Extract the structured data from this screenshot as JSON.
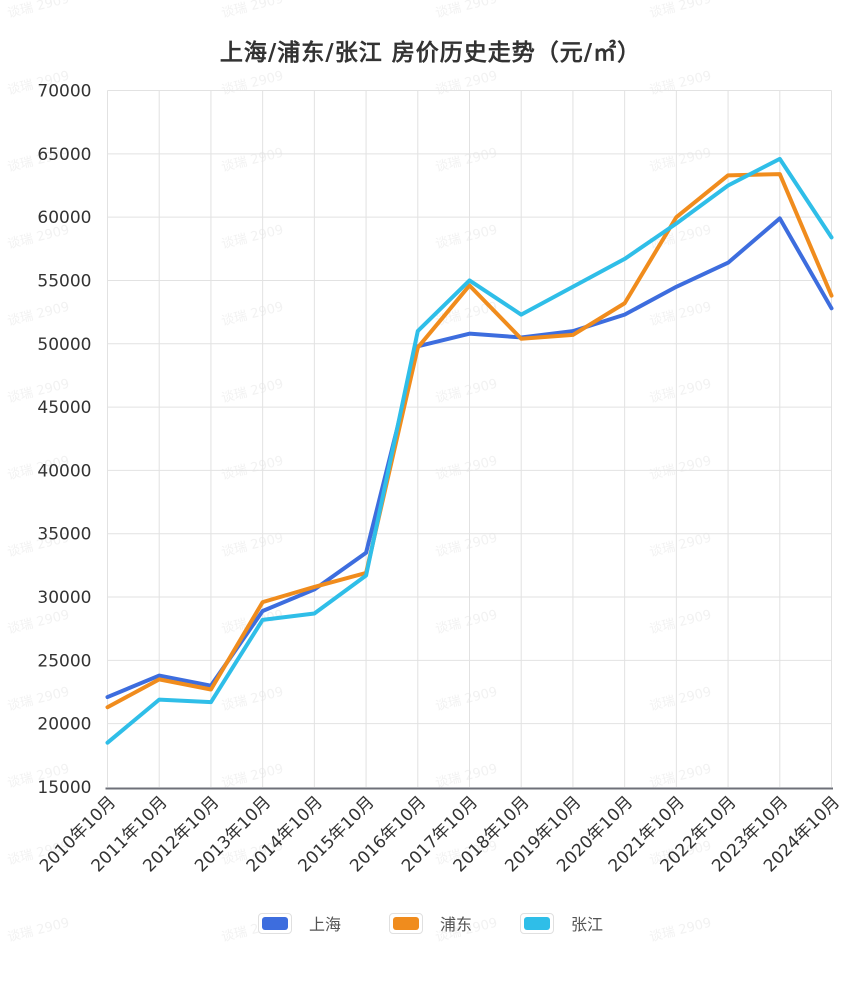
{
  "title": "上海/浦东/张江 房价历史走势（元/㎡）",
  "watermark": {
    "text": "谈瑞 2909"
  },
  "legend": {
    "items": [
      {
        "label": "上海",
        "color": "#3D6DDE"
      },
      {
        "label": "浦东",
        "color": "#F08C1D"
      },
      {
        "label": "张江",
        "color": "#2FBEE8"
      }
    ]
  },
  "chart_data": {
    "type": "line",
    "title": "上海/浦东/张江 房价历史走势（元/㎡）",
    "xlabel": "",
    "ylabel": "",
    "ylim": [
      15000,
      70000
    ],
    "y_ticks": [
      15000,
      20000,
      25000,
      30000,
      35000,
      40000,
      45000,
      50000,
      55000,
      60000,
      65000,
      70000
    ],
    "grid": true,
    "legend_position": "bottom",
    "x_label_rotation": -45,
    "categories": [
      "2010年10月",
      "2011年10月",
      "2012年10月",
      "2013年10月",
      "2014年10月",
      "2015年10月",
      "2016年10月",
      "2017年10月",
      "2018年10月",
      "2019年10月",
      "2020年10月",
      "2021年10月",
      "2022年10月",
      "2023年10月",
      "2024年10月"
    ],
    "series": [
      {
        "id": "shanghai",
        "name": "上海",
        "color": "#3D6DDE",
        "values": [
          22100,
          23800,
          23000,
          28900,
          30600,
          33500,
          49800,
          50800,
          50500,
          51000,
          52300,
          54500,
          56400,
          59900,
          52800
        ]
      },
      {
        "id": "pudong",
        "name": "浦东",
        "color": "#F08C1D",
        "values": [
          21300,
          23500,
          22700,
          29600,
          30800,
          31900,
          49700,
          54600,
          50400,
          50700,
          53200,
          60000,
          63300,
          63400,
          53800
        ]
      },
      {
        "id": "zhangjiang",
        "name": "张江",
        "color": "#2FBEE8",
        "values": [
          18500,
          21900,
          21700,
          28200,
          28700,
          31700,
          51000,
          55000,
          52300,
          54500,
          56700,
          59500,
          62500,
          64600,
          58400
        ]
      }
    ]
  }
}
